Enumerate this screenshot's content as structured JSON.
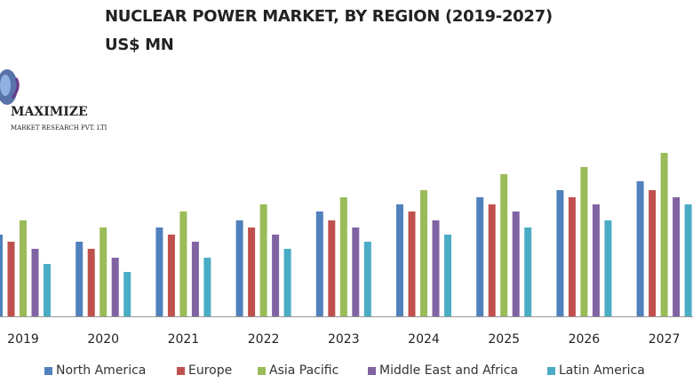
{
  "chart_data": {
    "type": "bar",
    "title": "NUCLEAR POWER MARKET, BY REGION (2019-2027)",
    "subtitle": "US$ MN",
    "xlabel": "",
    "ylabel": "",
    "ylim": [
      0,
      200
    ],
    "grid": false,
    "legend_position": "bottom",
    "categories": [
      "2019",
      "2020",
      "2021",
      "2022",
      "2023",
      "2024",
      "2025",
      "2026",
      "2027"
    ],
    "series": [
      {
        "name": "North America",
        "color": "#4F81BD",
        "values": [
          92,
          84,
          100,
          108,
          118,
          126,
          134,
          142,
          152
        ]
      },
      {
        "name": "Europe",
        "color": "#C0504D",
        "values": [
          84,
          76,
          92,
          100,
          108,
          118,
          126,
          134,
          142
        ]
      },
      {
        "name": "Asia Pacific",
        "color": "#9BBB59",
        "values": [
          108,
          100,
          118,
          126,
          134,
          142,
          160,
          168,
          184
        ]
      },
      {
        "name": "Middle East and Africa",
        "color": "#8064A2",
        "values": [
          76,
          66,
          84,
          92,
          100,
          108,
          118,
          126,
          134
        ]
      },
      {
        "name": "Latin America",
        "color": "#4BACC6",
        "values": [
          59,
          50,
          66,
          76,
          84,
          92,
          100,
          108,
          126
        ]
      }
    ]
  },
  "logo": {
    "name": "MAXIMIZE",
    "tagline": "MARKET RESEARCH PVT. LTD."
  }
}
